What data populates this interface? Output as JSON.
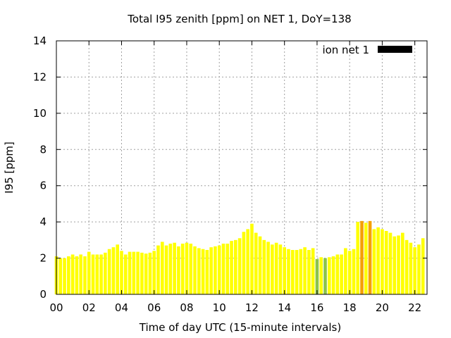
{
  "chart_data": {
    "type": "bar",
    "title": "Total I95 zenith [ppm] on NET 1, DoY=138",
    "xlabel": "Time of day UTC (15-minute intervals)",
    "ylabel": "I95 [ppm]",
    "ylim": [
      0,
      14
    ],
    "xlim": [
      0,
      22.75
    ],
    "yticks": [
      "0",
      "2",
      "4",
      "6",
      "8",
      "10",
      "12",
      "14"
    ],
    "xticks": [
      "00",
      "02",
      "04",
      "06",
      "08",
      "10",
      "12",
      "14",
      "16",
      "18",
      "20",
      "22"
    ],
    "grid": true,
    "legend": {
      "position": "top-right",
      "label": "ion net 1",
      "color": "#000000"
    },
    "colors": {
      "normal": "#ffff00",
      "green": "#8bc34a",
      "orange": "#f5a000"
    },
    "bar_start_hours": 0.0,
    "bar_step_hours": 0.25,
    "values": [
      2.1,
      2.0,
      2.0,
      2.1,
      2.2,
      2.1,
      2.2,
      2.1,
      2.35,
      2.2,
      2.2,
      2.2,
      2.3,
      2.5,
      2.6,
      2.75,
      2.4,
      2.2,
      2.35,
      2.35,
      2.35,
      2.3,
      2.25,
      2.3,
      2.4,
      2.7,
      2.9,
      2.7,
      2.8,
      2.85,
      2.65,
      2.8,
      2.85,
      2.8,
      2.65,
      2.55,
      2.5,
      2.45,
      2.6,
      2.65,
      2.7,
      2.8,
      2.8,
      2.95,
      3.0,
      3.1,
      3.45,
      3.6,
      3.9,
      3.4,
      3.2,
      3.0,
      2.9,
      2.75,
      2.85,
      2.75,
      2.6,
      2.5,
      2.45,
      2.45,
      2.5,
      2.6,
      2.45,
      2.55,
      1.95,
      2.05,
      2.0,
      2.05,
      2.1,
      2.2,
      2.2,
      2.55,
      2.4,
      2.5,
      4.0,
      4.05,
      3.95,
      4.05,
      3.6,
      3.7,
      3.6,
      3.5,
      3.4,
      3.2,
      3.25,
      3.4,
      3.0,
      2.85,
      2.6,
      2.75,
      3.1
    ],
    "bar_colors": [
      "normal",
      "normal",
      "normal",
      "normal",
      "normal",
      "normal",
      "normal",
      "normal",
      "normal",
      "normal",
      "normal",
      "normal",
      "normal",
      "normal",
      "normal",
      "normal",
      "normal",
      "normal",
      "normal",
      "normal",
      "normal",
      "normal",
      "normal",
      "normal",
      "normal",
      "normal",
      "normal",
      "normal",
      "normal",
      "normal",
      "normal",
      "normal",
      "normal",
      "normal",
      "normal",
      "normal",
      "normal",
      "normal",
      "normal",
      "normal",
      "normal",
      "normal",
      "normal",
      "normal",
      "normal",
      "normal",
      "normal",
      "normal",
      "normal",
      "normal",
      "normal",
      "normal",
      "normal",
      "normal",
      "normal",
      "normal",
      "normal",
      "normal",
      "normal",
      "normal",
      "normal",
      "normal",
      "normal",
      "normal",
      "green",
      "normal",
      "green",
      "normal",
      "normal",
      "normal",
      "normal",
      "normal",
      "normal",
      "normal",
      "normal",
      "orange",
      "normal",
      "orange",
      "normal",
      "normal",
      "normal",
      "normal",
      "normal",
      "normal",
      "normal",
      "normal",
      "normal",
      "normal",
      "normal",
      "normal",
      "normal"
    ]
  }
}
